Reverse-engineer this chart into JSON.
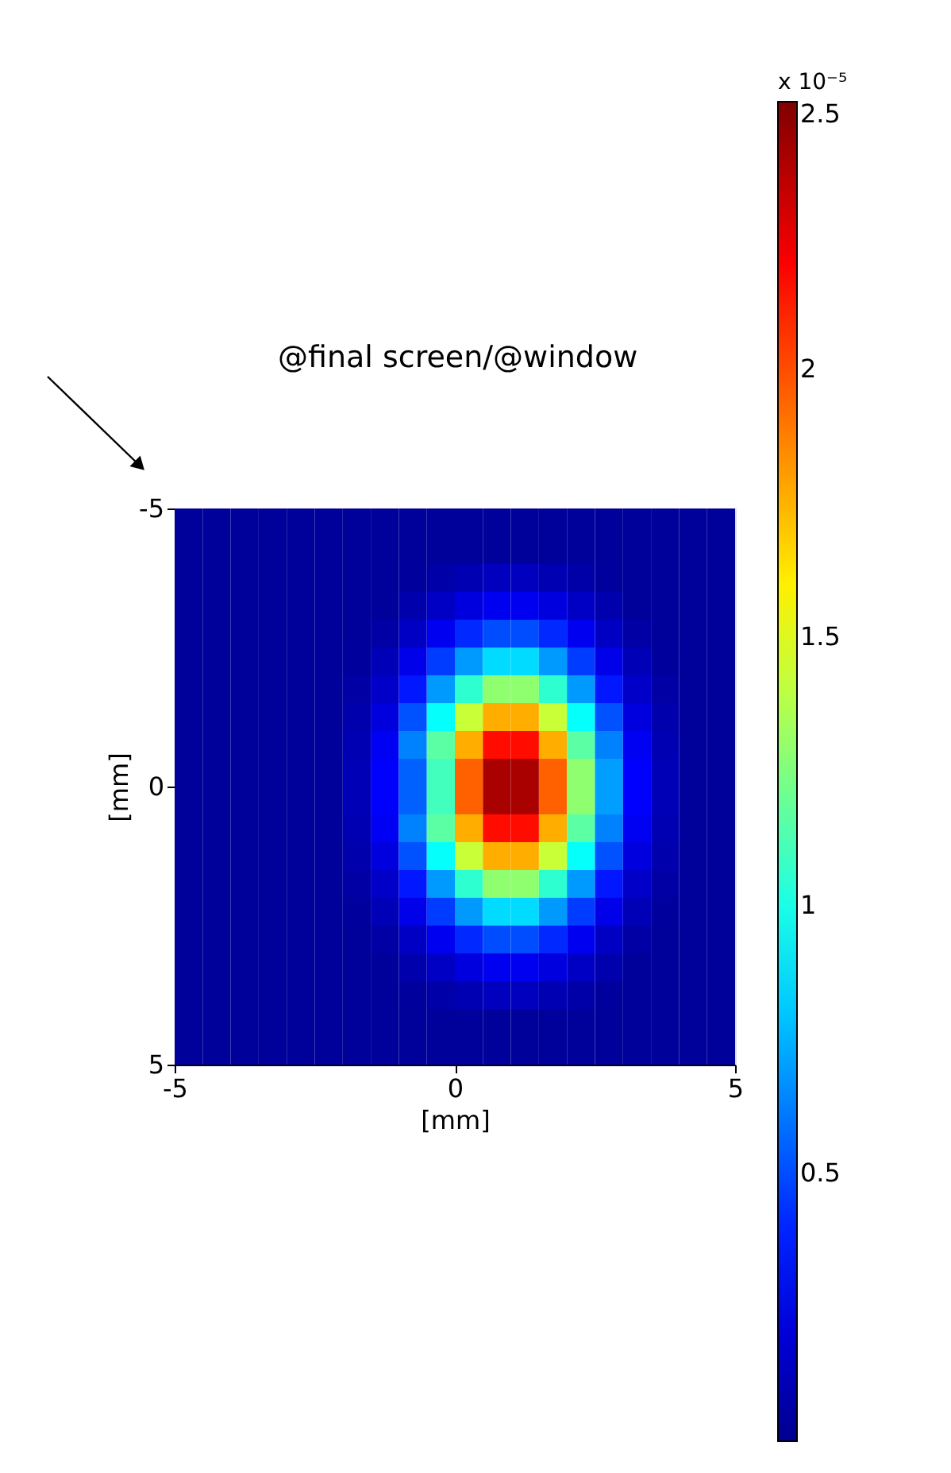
{
  "chart_data": {
    "type": "heatmap",
    "xlabel": "[mm]",
    "ylabel": "[mm]",
    "clabel": "x 10⁻⁵",
    "annotations": [
      "@final screen/@window"
    ],
    "x": [
      -4.75,
      -4.25,
      -3.75,
      -3.25,
      -2.75,
      -2.25,
      -1.75,
      -1.25,
      -0.75,
      -0.25,
      0.25,
      0.75,
      1.25,
      1.75,
      2.25,
      2.75,
      3.25,
      3.75,
      4.25,
      4.75
    ],
    "y": [
      -4.75,
      -4.25,
      -3.75,
      -3.25,
      -2.75,
      -2.25,
      -1.75,
      -1.25,
      -0.75,
      -0.25,
      0.25,
      0.75,
      1.25,
      1.75,
      2.25,
      2.75,
      3.25,
      3.75,
      4.25,
      4.75
    ],
    "xlim": [
      -5,
      5
    ],
    "xticks": [
      -5,
      0,
      5
    ],
    "ylim": [
      5,
      -5
    ],
    "yticks": [
      -5,
      0,
      5
    ],
    "clim": [
      0,
      2.5
    ],
    "cticks": [
      0.5,
      1,
      1.5,
      2,
      2.5
    ],
    "cells": [
      [
        0.03,
        0.03,
        0.03,
        0.03,
        0.03,
        0.03,
        0.03,
        0.03,
        0.03,
        0.03,
        0.03,
        0.03,
        0.03,
        0.03,
        0.03,
        0.03,
        0.03,
        0.03,
        0.03,
        0.03
      ],
      [
        0.03,
        0.03,
        0.03,
        0.03,
        0.03,
        0.03,
        0.03,
        0.03,
        0.03,
        0.03,
        0.03,
        0.03,
        0.03,
        0.03,
        0.03,
        0.03,
        0.03,
        0.03,
        0.03,
        0.03
      ],
      [
        0.03,
        0.03,
        0.03,
        0.03,
        0.03,
        0.03,
        0.03,
        0.03,
        0.04,
        0.07,
        0.1,
        0.13,
        0.13,
        0.1,
        0.07,
        0.04,
        0.03,
        0.03,
        0.03,
        0.03
      ],
      [
        0.03,
        0.03,
        0.03,
        0.03,
        0.03,
        0.03,
        0.03,
        0.03,
        0.08,
        0.15,
        0.22,
        0.27,
        0.27,
        0.22,
        0.15,
        0.08,
        0.03,
        0.03,
        0.03,
        0.03
      ],
      [
        0.03,
        0.03,
        0.03,
        0.03,
        0.03,
        0.03,
        0.03,
        0.06,
        0.15,
        0.27,
        0.41,
        0.5,
        0.5,
        0.41,
        0.27,
        0.15,
        0.06,
        0.03,
        0.03,
        0.03
      ],
      [
        0.03,
        0.03,
        0.03,
        0.03,
        0.03,
        0.03,
        0.04,
        0.11,
        0.25,
        0.46,
        0.69,
        0.85,
        0.85,
        0.69,
        0.46,
        0.25,
        0.11,
        0.04,
        0.03,
        0.03
      ],
      [
        0.03,
        0.03,
        0.03,
        0.03,
        0.03,
        0.03,
        0.06,
        0.16,
        0.37,
        0.69,
        1.05,
        1.29,
        1.29,
        1.05,
        0.69,
        0.37,
        0.16,
        0.06,
        0.03,
        0.03
      ],
      [
        0.03,
        0.03,
        0.03,
        0.03,
        0.03,
        0.03,
        0.08,
        0.22,
        0.51,
        0.95,
        1.43,
        1.76,
        1.76,
        1.43,
        0.95,
        0.51,
        0.22,
        0.08,
        0.03,
        0.03
      ],
      [
        0.03,
        0.03,
        0.03,
        0.03,
        0.03,
        0.03,
        0.1,
        0.28,
        0.63,
        1.16,
        1.76,
        2.16,
        2.16,
        1.76,
        1.16,
        0.63,
        0.28,
        0.1,
        0.03,
        0.03
      ],
      [
        0.03,
        0.03,
        0.03,
        0.03,
        0.03,
        0.03,
        0.11,
        0.31,
        0.55,
        1.1,
        1.95,
        2.4,
        2.4,
        1.95,
        1.29,
        0.7,
        0.31,
        0.11,
        0.03,
        0.03
      ],
      [
        0.03,
        0.03,
        0.03,
        0.03,
        0.03,
        0.03,
        0.11,
        0.31,
        0.55,
        1.1,
        1.95,
        2.4,
        2.4,
        1.95,
        1.29,
        0.7,
        0.31,
        0.11,
        0.03,
        0.03
      ],
      [
        0.03,
        0.03,
        0.03,
        0.03,
        0.03,
        0.03,
        0.1,
        0.28,
        0.63,
        1.16,
        1.76,
        2.16,
        2.16,
        1.76,
        1.16,
        0.63,
        0.28,
        0.1,
        0.03,
        0.03
      ],
      [
        0.03,
        0.03,
        0.03,
        0.03,
        0.03,
        0.03,
        0.08,
        0.22,
        0.51,
        0.95,
        1.43,
        1.76,
        1.76,
        1.43,
        0.95,
        0.51,
        0.22,
        0.08,
        0.03,
        0.03
      ],
      [
        0.03,
        0.03,
        0.03,
        0.03,
        0.03,
        0.03,
        0.06,
        0.16,
        0.37,
        0.69,
        1.05,
        1.29,
        1.29,
        1.05,
        0.69,
        0.37,
        0.16,
        0.06,
        0.03,
        0.03
      ],
      [
        0.03,
        0.03,
        0.03,
        0.03,
        0.03,
        0.03,
        0.04,
        0.11,
        0.25,
        0.46,
        0.69,
        0.85,
        0.85,
        0.69,
        0.46,
        0.25,
        0.11,
        0.04,
        0.03,
        0.03
      ],
      [
        0.03,
        0.03,
        0.03,
        0.03,
        0.03,
        0.03,
        0.03,
        0.06,
        0.15,
        0.27,
        0.41,
        0.5,
        0.5,
        0.41,
        0.27,
        0.15,
        0.06,
        0.03,
        0.03,
        0.03
      ],
      [
        0.03,
        0.03,
        0.03,
        0.03,
        0.03,
        0.03,
        0.03,
        0.03,
        0.08,
        0.15,
        0.22,
        0.27,
        0.27,
        0.22,
        0.15,
        0.08,
        0.03,
        0.03,
        0.03,
        0.03
      ],
      [
        0.03,
        0.03,
        0.03,
        0.03,
        0.03,
        0.03,
        0.03,
        0.03,
        0.04,
        0.07,
        0.1,
        0.13,
        0.13,
        0.1,
        0.07,
        0.04,
        0.03,
        0.03,
        0.03,
        0.03
      ],
      [
        0.03,
        0.03,
        0.03,
        0.03,
        0.03,
        0.03,
        0.03,
        0.03,
        0.03,
        0.03,
        0.03,
        0.03,
        0.03,
        0.03,
        0.03,
        0.03,
        0.03,
        0.03,
        0.03,
        0.03
      ],
      [
        0.03,
        0.03,
        0.03,
        0.03,
        0.03,
        0.03,
        0.03,
        0.03,
        0.03,
        0.03,
        0.03,
        0.03,
        0.03,
        0.03,
        0.03,
        0.03,
        0.03,
        0.03,
        0.03,
        0.03
      ]
    ]
  }
}
